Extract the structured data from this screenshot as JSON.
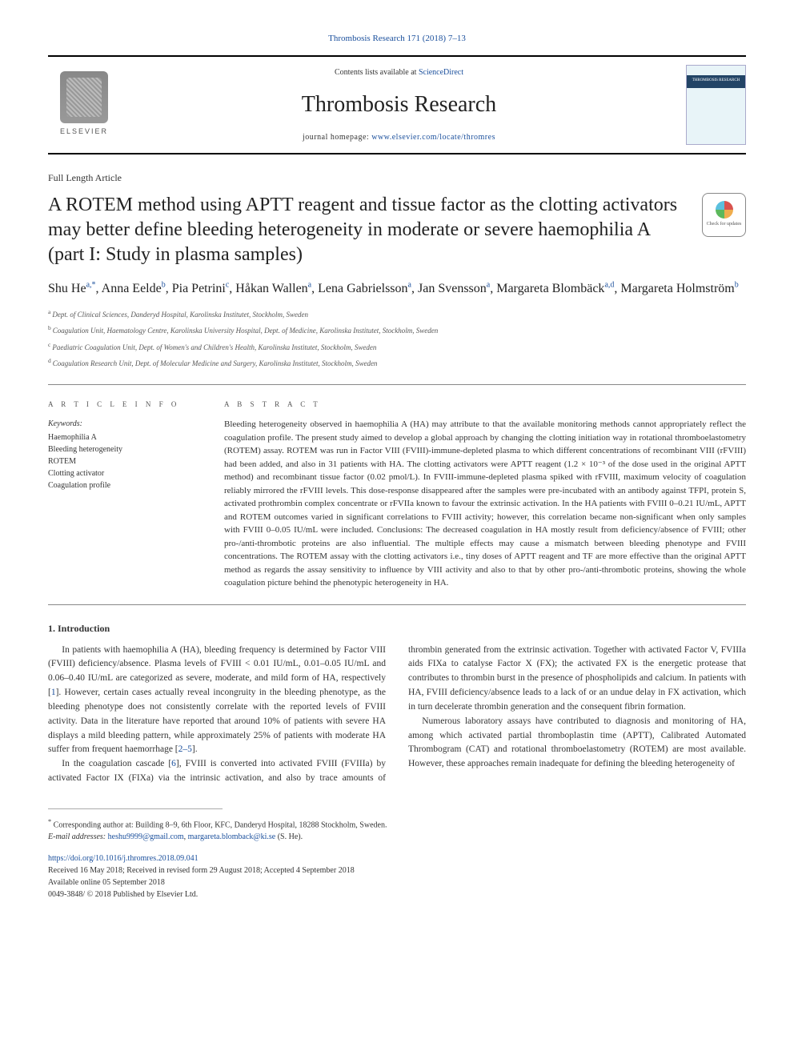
{
  "journal_cite": "Thrombosis Research 171 (2018) 7–13",
  "header": {
    "contents_prefix": "Contents lists available at ",
    "contents_link": "ScienceDirect",
    "journal_name": "Thrombosis Research",
    "homepage_prefix": "journal homepage: ",
    "homepage_link": "www.elsevier.com/locate/thromres",
    "elsevier_label": "ELSEVIER",
    "cover_band": "THROMBOSIS RESEARCH",
    "check_updates": "Check for updates"
  },
  "article_type": "Full Length Article",
  "title": "A ROTEM method using APTT reagent and tissue factor as the clotting activators may better define bleeding heterogeneity in moderate or severe haemophilia A (part I: Study in plasma samples)",
  "authors_html_parts": [
    {
      "name": "Shu He",
      "sup": "a,*"
    },
    {
      "name": "Anna Eelde",
      "sup": "b"
    },
    {
      "name": "Pia Petrini",
      "sup": "c"
    },
    {
      "name": "Håkan Wallen",
      "sup": "a"
    },
    {
      "name": "Lena Gabrielsson",
      "sup": "a"
    },
    {
      "name": "Jan Svensson",
      "sup": "a"
    },
    {
      "name": "Margareta Blombäck",
      "sup": "a,d"
    },
    {
      "name": "Margareta Holmström",
      "sup": "b"
    }
  ],
  "affiliations": [
    {
      "sup": "a",
      "text": "Dept. of Clinical Sciences, Danderyd Hospital, Karolinska Institutet, Stockholm, Sweden"
    },
    {
      "sup": "b",
      "text": "Coagulation Unit, Haematology Centre, Karolinska University Hospital, Dept. of Medicine, Karolinska Institutet, Stockholm, Sweden"
    },
    {
      "sup": "c",
      "text": "Paediatric Coagulation Unit, Dept. of Women's and Children's Health, Karolinska Institutet, Stockholm, Sweden"
    },
    {
      "sup": "d",
      "text": "Coagulation Research Unit, Dept. of Molecular Medicine and Surgery, Karolinska Institutet, Stockholm, Sweden"
    }
  ],
  "info_heading": "A R T I C L E  I N F O",
  "abstract_heading": "A B S T R A C T",
  "keywords_label": "Keywords:",
  "keywords": [
    "Haemophilia A",
    "Bleeding heterogeneity",
    "ROTEM",
    "Clotting activator",
    "Coagulation profile"
  ],
  "abstract": "Bleeding heterogeneity observed in haemophilia A (HA) may attribute to that the available monitoring methods cannot appropriately reflect the coagulation profile. The present study aimed to develop a global approach by changing the clotting initiation way in rotational thromboelastometry (ROTEM) assay. ROTEM was run in Factor VIII (FVIII)-immune-depleted plasma to which different concentrations of recombinant VIII (rFVIII) had been added, and also in 31 patients with HA. The clotting activators were APTT reagent (1.2 × 10⁻³ of the dose used in the original APTT method) and recombinant tissue factor (0.02 pmol/L). In FVIII-immune-depleted plasma spiked with rFVIII, maximum velocity of coagulation reliably mirrored the rFVIII levels. This dose-response disappeared after the samples were pre-incubated with an antibody against TFPI, protein S, activated prothrombin complex concentrate or rFVIIa known to favour the extrinsic activation. In the HA patients with FVIII 0–0.21 IU/mL, APTT and ROTEM outcomes varied in significant correlations to FVIII activity; however, this correlation became non-significant when only samples with FVIII 0–0.05 IU/mL were included. Conclusions: The decreased coagulation in HA mostly result from deficiency/absence of FVIII; other pro-/anti-thrombotic proteins are also influential. The multiple effects may cause a mismatch between bleeding phenotype and FVIII concentrations. The ROTEM assay with the clotting activators i.e., tiny doses of APTT reagent and TF are more effective than the original APTT method as regards the assay sensitivity to influence by VIII activity and also to that by other pro-/anti-thrombotic proteins, showing the whole coagulation picture behind the phenotypic heterogeneity in HA.",
  "section1_heading": "1. Introduction",
  "intro_para1": "In patients with haemophilia A (HA), bleeding frequency is determined by Factor VIII (FVIII) deficiency/absence. Plasma levels of FVIII < 0.01 IU/mL, 0.01–0.05 IU/mL and 0.06–0.40 IU/mL are categorized as severe, moderate, and mild form of HA, respectively [",
  "ref1": "1",
  "intro_para1b": "]. However, certain cases actually reveal incongruity in the bleeding phenotype, as the bleeding phenotype does not consistently correlate with the reported levels of FVIII activity. Data in the literature have reported that around 10% of patients with severe HA displays a mild bleeding pattern, while approximately 25% of patients with moderate HA suffer from frequent haemorrhage [",
  "ref2_5": "2–5",
  "intro_para1c": "].",
  "intro_para2a": "In the coagulation cascade [",
  "ref6": "6",
  "intro_para2b": "], FVIII is converted into activated FVIII (FVIIIa) by activated Factor IX (FIXa) via the intrinsic activation, and also by trace amounts of thrombin generated from the extrinsic activation. Together with activated Factor V, FVIIIa aids FIXa to catalyse Factor X (FX); the activated FX is the energetic protease that contributes to thrombin burst in the presence of phospholipids and calcium. In patients with HA, FVIII deficiency/absence leads to a lack of or an undue delay in FX activation, which in turn decelerate thrombin generation and the consequent fibrin formation.",
  "intro_para3": "Numerous laboratory assays have contributed to diagnosis and monitoring of HA, among which activated partial thromboplastin time (APTT), Calibrated Automated Thrombogram (CAT) and rotational thromboelastometry (ROTEM) are most available. However, these approaches remain inadequate for defining the bleeding heterogeneity of",
  "corresponding": {
    "star": "*",
    "text": " Corresponding author at: Building 8–9, 6th Floor, KFC, Danderyd Hospital, 18288 Stockholm, Sweden.",
    "email_label": "E-mail addresses: ",
    "email1": "heshu9999@gmail.com",
    "sep": ", ",
    "email2": "margareta.blomback@ki.se",
    "suffix": " (S. He)."
  },
  "footer": {
    "doi": "https://doi.org/10.1016/j.thromres.2018.09.041",
    "history": "Received 16 May 2018; Received in revised form 29 August 2018; Accepted 4 September 2018",
    "online": "Available online 05 September 2018",
    "copyright": "0049-3848/ © 2018 Published by Elsevier Ltd."
  }
}
